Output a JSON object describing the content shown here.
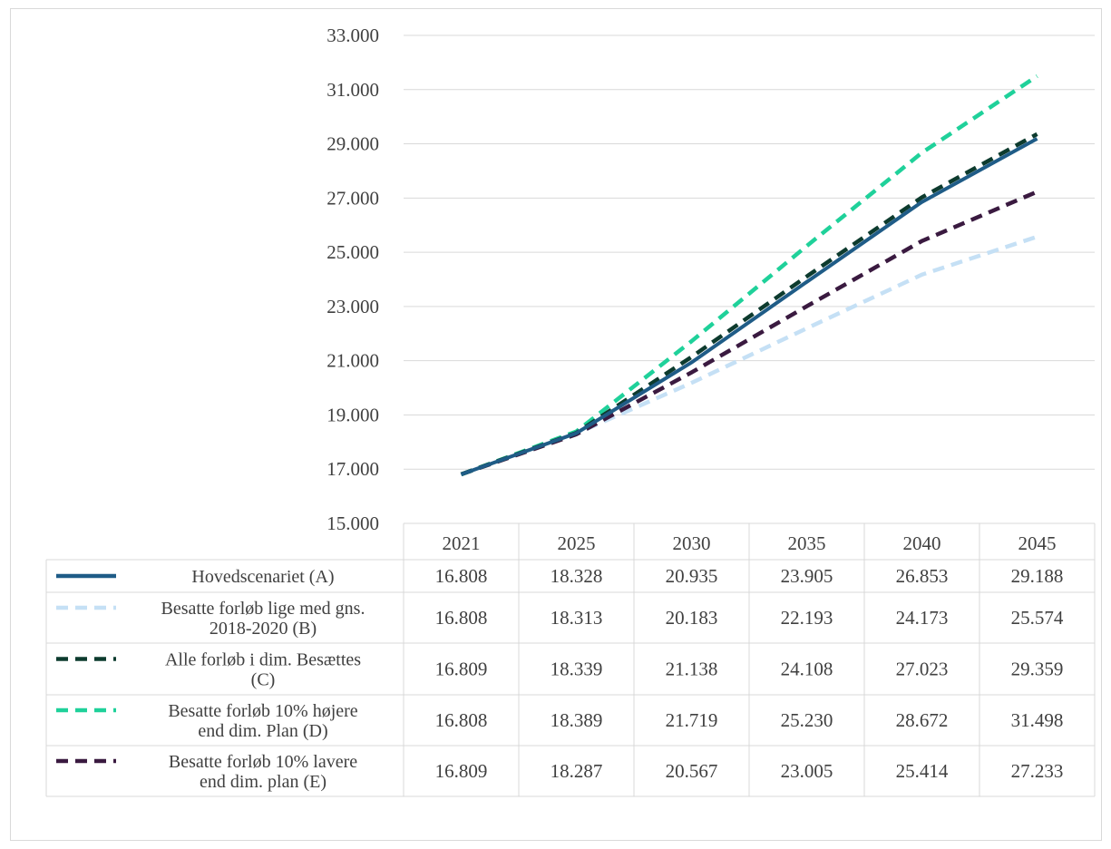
{
  "chart_data": {
    "type": "line",
    "title": "",
    "xlabel": "",
    "ylabel": "",
    "categories": [
      "2021",
      "2025",
      "2030",
      "2035",
      "2040",
      "2045"
    ],
    "y_ticks": [
      "15.000",
      "17.000",
      "19.000",
      "21.000",
      "23.000",
      "25.000",
      "27.000",
      "29.000",
      "31.000",
      "33.000"
    ],
    "ylim": [
      15000,
      33000
    ],
    "grid": true,
    "legend_placement": "data-table",
    "series": [
      {
        "name_lines": [
          "Hovedscenariet (A)"
        ],
        "values": [
          16808,
          18328,
          20935,
          23905,
          26853,
          29188
        ],
        "labels": [
          "16.808",
          "18.328",
          "20.935",
          "23.905",
          "26.853",
          "29.188"
        ],
        "color": "#1f5c87",
        "dashed": false
      },
      {
        "name_lines": [
          "Besatte forløb lige med gns.",
          "2018-2020 (B)"
        ],
        "values": [
          16808,
          18313,
          20183,
          22193,
          24173,
          25574
        ],
        "labels": [
          "16.808",
          "18.313",
          "20.183",
          "22.193",
          "24.173",
          "25.574"
        ],
        "color": "#c5e0f5",
        "dashed": true
      },
      {
        "name_lines": [
          "Alle forløb i dim. Besættes",
          "(C)"
        ],
        "values": [
          16809,
          18339,
          21138,
          24108,
          27023,
          29359
        ],
        "labels": [
          "16.809",
          "18.339",
          "21.138",
          "24.108",
          "27.023",
          "29.359"
        ],
        "color": "#0d3b2e",
        "dashed": true
      },
      {
        "name_lines": [
          "Besatte forløb 10% højere",
          "end dim. Plan (D)"
        ],
        "values": [
          16808,
          18389,
          21719,
          25230,
          28672,
          31498
        ],
        "labels": [
          "16.808",
          "18.389",
          "21.719",
          "25.230",
          "28.672",
          "31.498"
        ],
        "color": "#1fd19a",
        "dashed": true
      },
      {
        "name_lines": [
          "Besatte forløb 10% lavere",
          "end dim. plan (E)"
        ],
        "values": [
          16809,
          18287,
          20567,
          23005,
          25414,
          27233
        ],
        "labels": [
          "16.809",
          "18.287",
          "20.567",
          "23.005",
          "25.414",
          "27.233"
        ],
        "color": "#3a1a40",
        "dashed": true
      }
    ]
  }
}
